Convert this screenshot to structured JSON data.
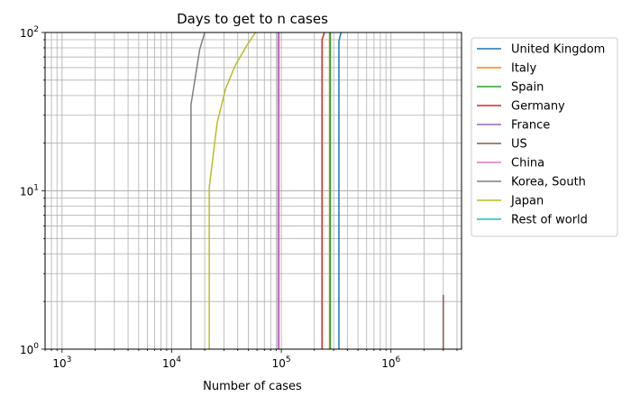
{
  "chart_data": {
    "type": "line",
    "title": "Days to get to n cases",
    "xlabel": "Number of cases",
    "ylabel": "",
    "xscale": "log",
    "yscale": "log",
    "xlim": [
      700,
      4400000
    ],
    "ylim": [
      1,
      100
    ],
    "grid": "major and minor on both axes",
    "legend_position": "outside right, top",
    "x_major_ticks": [
      {
        "value": 1000,
        "base": "10",
        "exp": "3"
      },
      {
        "value": 10000,
        "base": "10",
        "exp": "4"
      },
      {
        "value": 100000,
        "base": "10",
        "exp": "5"
      },
      {
        "value": 1000000,
        "base": "10",
        "exp": "6"
      }
    ],
    "y_major_ticks": [
      {
        "value": 1,
        "base": "10",
        "exp": "0"
      },
      {
        "value": 10,
        "base": "10",
        "exp": "1"
      },
      {
        "value": 100,
        "base": "10",
        "exp": "2"
      }
    ],
    "series": [
      {
        "name": "United Kingdom",
        "color": "#1f77b4",
        "points": [
          [
            335000,
            1
          ],
          [
            335000,
            88
          ],
          [
            350000,
            100
          ]
        ]
      },
      {
        "name": "Italy",
        "color": "#ff7f0e",
        "points": [
          [
            275000,
            1
          ],
          [
            275000,
            100
          ]
        ]
      },
      {
        "name": "Spain",
        "color": "#2ca02c",
        "points": [
          [
            280000,
            1
          ],
          [
            280000,
            100
          ]
        ]
      },
      {
        "name": "Germany",
        "color": "#d62728",
        "points": [
          [
            235000,
            1
          ],
          [
            235000,
            90
          ],
          [
            247000,
            100
          ]
        ]
      },
      {
        "name": "France",
        "color": "#9467bd",
        "points": [
          [
            95000,
            1
          ],
          [
            95000,
            100
          ]
        ]
      },
      {
        "name": "US",
        "color": "#8c564b",
        "points": [
          [
            3000000,
            1
          ],
          [
            3000000,
            2.2
          ]
        ]
      },
      {
        "name": "China",
        "color": "#e377c2",
        "points": [
          [
            93000,
            1
          ],
          [
            93000,
            100
          ]
        ]
      },
      {
        "name": "Korea, South",
        "color": "#7f7f7f",
        "points": [
          [
            15000,
            1
          ],
          [
            15000,
            35
          ],
          [
            18000,
            78
          ],
          [
            20000,
            100
          ]
        ]
      },
      {
        "name": "Japan",
        "color": "#bcbd22",
        "points": [
          [
            22000,
            1
          ],
          [
            22000,
            10.5
          ],
          [
            26000,
            27
          ],
          [
            31000,
            44
          ],
          [
            38000,
            62
          ],
          [
            48000,
            82
          ],
          [
            58000,
            100
          ]
        ]
      },
      {
        "name": "Rest of world",
        "color": "#17becf",
        "points": []
      }
    ]
  }
}
